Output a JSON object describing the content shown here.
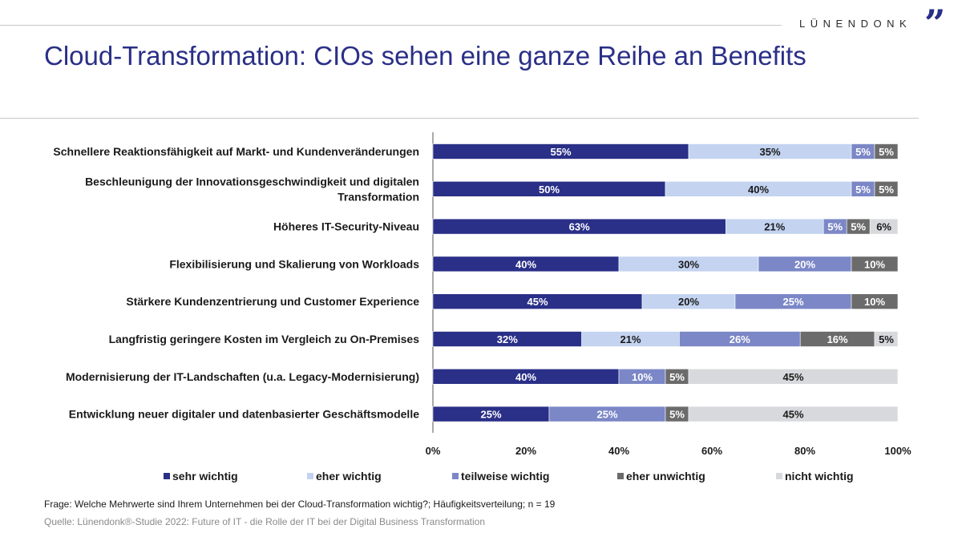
{
  "brand": {
    "name": "LÜNENDONK",
    "mark": "”"
  },
  "title": "Cloud-Transformation: CIOs sehen eine ganze Reihe an Benefits",
  "footnote": "Frage: Welche Mehrwerte sind Ihrem Unternehmen bei der Cloud-Transformation wichtig?; Häufigkeitsverteilung; n = 19",
  "source": "Quelle: Lünendonk®-Studie 2022: Future of IT - die Rolle der IT bei der Digital Business Transformation",
  "colors": {
    "sehr wichtig": "#2a2f87",
    "eher wichtig": "#c3d3f0",
    "teilweise wichtig": "#7b87c6",
    "eher unwichtig": "#6b6b6b",
    "nicht wichtig": "#d7d9dc"
  },
  "chart_data": {
    "type": "bar",
    "orientation": "horizontal",
    "stacked": true,
    "categories": [
      [
        "Schnellere Reaktionsfähigkeit auf Markt- und Kundenveränderungen"
      ],
      [
        "Beschleunigung der Innovationsgeschwindigkeit und digitalen",
        "Transformation"
      ],
      [
        "Höheres IT-Security-Niveau"
      ],
      [
        "Flexibilisierung und Skalierung von Workloads"
      ],
      [
        "Stärkere Kundenzentrierung und Customer Experience"
      ],
      [
        "Langfristig geringere Kosten im Vergleich zu On-Premises"
      ],
      [
        "Modernisierung der IT-Landschaften (u.a. Legacy-Modernisierung)"
      ],
      [
        "Entwicklung neuer digitaler und datenbasierter Geschäftsmodelle"
      ]
    ],
    "series": [
      {
        "name": "sehr wichtig",
        "values": [
          55,
          50,
          63,
          40,
          45,
          32,
          40,
          25
        ]
      },
      {
        "name": "eher wichtig",
        "values": [
          35,
          40,
          21,
          30,
          20,
          21,
          0,
          0
        ]
      },
      {
        "name": "teilweise wichtig",
        "values": [
          5,
          5,
          5,
          20,
          25,
          26,
          10,
          25
        ]
      },
      {
        "name": "eher unwichtig",
        "values": [
          5,
          5,
          5,
          10,
          10,
          16,
          5,
          5
        ]
      },
      {
        "name": "nicht wichtig",
        "values": [
          0,
          0,
          6,
          0,
          0,
          5,
          45,
          45
        ]
      }
    ],
    "label_colors": [
      "#ffffff",
      "#1a1a1a",
      "#ffffff",
      "#ffffff",
      "#1a1a1a"
    ],
    "xlim": [
      0,
      100
    ],
    "ticks": [
      0,
      20,
      40,
      60,
      80,
      100
    ],
    "tick_suffix": "%",
    "legend_position": "bottom"
  }
}
